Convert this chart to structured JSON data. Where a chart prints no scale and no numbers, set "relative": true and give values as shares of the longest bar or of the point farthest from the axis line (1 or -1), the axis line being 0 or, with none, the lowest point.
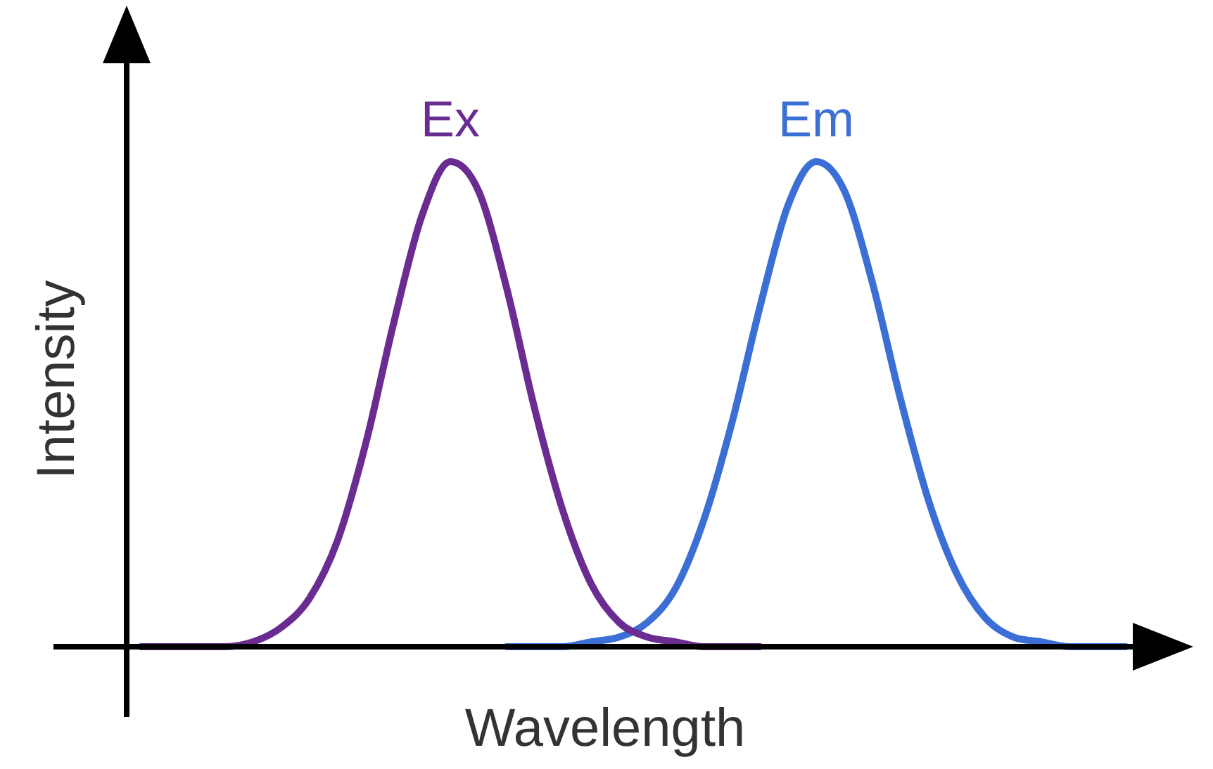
{
  "chart_data": {
    "type": "line",
    "relative": true,
    "xlabel": "Wavelength",
    "ylabel": "Intensity",
    "legend": false,
    "marker": "none",
    "line_style": "solid",
    "categories": [
      null,
      null,
      null,
      null,
      null,
      null,
      null,
      null,
      null,
      null,
      null,
      null,
      null,
      null,
      null,
      null,
      null,
      null,
      null,
      null,
      null,
      null,
      null,
      null,
      null,
      null,
      null,
      null,
      null,
      null,
      null,
      null,
      null,
      null,
      null,
      null
    ],
    "series": [
      {
        "name": "Ex",
        "color": "#6a2c91",
        "values": [
          0,
          0,
          0,
          0,
          0.01,
          0.04,
          0.1,
          0.22,
          0.42,
          0.67,
          0.89,
          1,
          0.94,
          0.74,
          0.49,
          0.28,
          0.13,
          0.05,
          0.02,
          0.01,
          0,
          0,
          0,
          null,
          null,
          null,
          null,
          null,
          null,
          null,
          null,
          null,
          null,
          null,
          null,
          null
        ]
      },
      {
        "name": "Em",
        "color": "#3b6fd6",
        "values": [
          null,
          null,
          null,
          null,
          null,
          null,
          null,
          null,
          null,
          null,
          null,
          null,
          null,
          0,
          0,
          0,
          0.01,
          0.02,
          0.05,
          0.12,
          0.26,
          0.46,
          0.7,
          0.91,
          1,
          0.94,
          0.75,
          0.51,
          0.3,
          0.15,
          0.06,
          0.02,
          0.01,
          0,
          0,
          0
        ]
      }
    ]
  }
}
